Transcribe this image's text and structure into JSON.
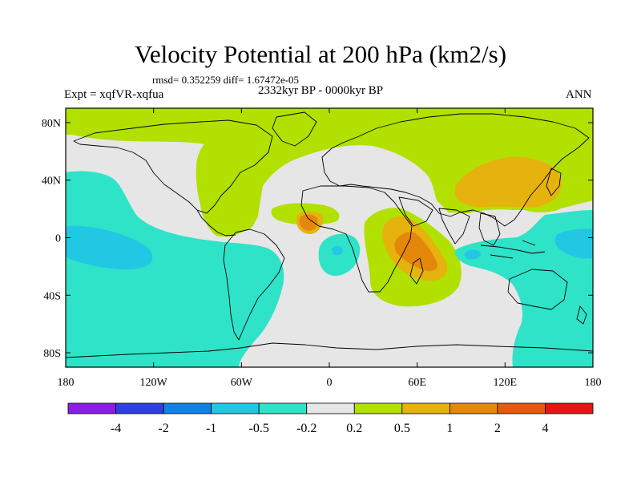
{
  "title": "Velocity Potential at 200 hPa (km2/s)",
  "stats": "rmsd= 0.352259 diff= 1.67472e-05",
  "period": "2332kyr BP - 0000kyr BP",
  "experiment": "Expt = xqfVR-xqfua",
  "season": "ANN",
  "map": {
    "projection": "cylindrical equidistant",
    "lon_range": [
      -180,
      180
    ],
    "lat_range": [
      -90,
      90
    ],
    "lat_ticks": [
      {
        "lat": 80,
        "label": "80N"
      },
      {
        "lat": 40,
        "label": "40N"
      },
      {
        "lat": 0,
        "label": "0"
      },
      {
        "lat": -40,
        "label": "40S"
      },
      {
        "lat": -80,
        "label": "80S"
      }
    ],
    "lon_ticks": [
      {
        "lon": -180,
        "label": "180"
      },
      {
        "lon": -120,
        "label": "120W"
      },
      {
        "lon": -60,
        "label": "60W"
      },
      {
        "lon": 0,
        "label": "0"
      },
      {
        "lon": 60,
        "label": "60E"
      },
      {
        "lon": 120,
        "label": "120E"
      },
      {
        "lon": 180,
        "label": "180"
      }
    ],
    "field_colors": {
      "neutral": "#e6e6e6",
      "neg_0_2_to_0_5": "#2fe3c8",
      "neg_0_5_to_1": "#21c7e3",
      "pos_0_2_to_0_5": "#b2e000",
      "pos_0_5_to_1": "#e6b20d",
      "pos_1_to_2": "#e5870b"
    }
  },
  "colorbar": {
    "colors": [
      "#8c1de6",
      "#2f3fe0",
      "#0f82e6",
      "#21c7e3",
      "#2fe3c8",
      "#e6e6e6",
      "#b2e000",
      "#e6b20d",
      "#e5870b",
      "#e55b0b",
      "#e61515"
    ],
    "labels": [
      "-4",
      "-2",
      "-1",
      "-0.5",
      "-0.2",
      "0.2",
      "0.5",
      "1",
      "2",
      "4"
    ]
  }
}
